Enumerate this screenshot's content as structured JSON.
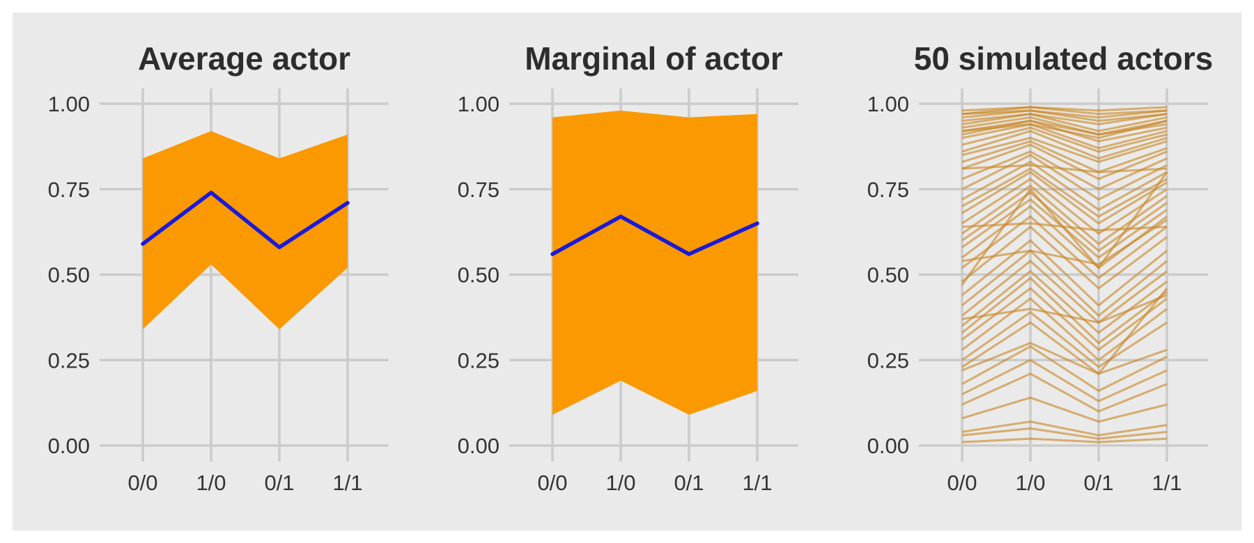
{
  "figure": {
    "page_background": "#ffffff",
    "panel_background": "#eaeaea",
    "grid_color": "#cbcbcb",
    "title_color": "#2d2d2d",
    "label_color": "#333333",
    "ribbon_color": "#fb9902",
    "mean_line_color": "#1a1ad9",
    "actor_line_color": "#c8841e",
    "actor_line_opacity": 0.6
  },
  "axes": {
    "x_ticklabels": [
      "0/0",
      "1/0",
      "0/1",
      "1/1"
    ],
    "y_ticklabels": [
      "0.00",
      "0.25",
      "0.50",
      "0.75",
      "1.00"
    ],
    "y_tickvalues": [
      0,
      0.25,
      0.5,
      0.75,
      1
    ],
    "ylim": [
      0,
      1
    ],
    "grid": "on",
    "legend": "none"
  },
  "chart_data": [
    {
      "type": "area",
      "title": "Average actor",
      "categories": [
        "0/0",
        "1/0",
        "0/1",
        "1/1"
      ],
      "mean": [
        0.59,
        0.74,
        0.58,
        0.71
      ],
      "ribbon_lower": [
        0.34,
        0.53,
        0.34,
        0.52
      ],
      "ribbon_upper": [
        0.84,
        0.92,
        0.84,
        0.91
      ],
      "ylim": [
        0,
        1
      ]
    },
    {
      "type": "area",
      "title": "Marginal of actor",
      "categories": [
        "0/0",
        "1/0",
        "0/1",
        "1/1"
      ],
      "mean": [
        0.56,
        0.67,
        0.56,
        0.65
      ],
      "ribbon_lower": [
        0.09,
        0.19,
        0.09,
        0.16
      ],
      "ribbon_upper": [
        0.96,
        0.98,
        0.96,
        0.97
      ],
      "ylim": [
        0,
        1
      ]
    },
    {
      "type": "line",
      "title": "50 simulated actors",
      "categories": [
        "0/0",
        "1/0",
        "0/1",
        "1/1"
      ],
      "series": [
        [
          0.98,
          0.99,
          0.98,
          0.99
        ],
        [
          0.97,
          0.99,
          0.97,
          0.98
        ],
        [
          0.97,
          0.98,
          0.96,
          0.98
        ],
        [
          0.96,
          0.98,
          0.95,
          0.97
        ],
        [
          0.95,
          0.97,
          0.94,
          0.97
        ],
        [
          0.94,
          0.97,
          0.92,
          0.96
        ],
        [
          0.93,
          0.96,
          0.91,
          0.95
        ],
        [
          0.92,
          0.95,
          0.91,
          0.94
        ],
        [
          0.92,
          0.94,
          0.9,
          0.95
        ],
        [
          0.91,
          0.95,
          0.89,
          0.93
        ],
        [
          0.9,
          0.94,
          0.87,
          0.92
        ],
        [
          0.88,
          0.93,
          0.86,
          0.91
        ],
        [
          0.86,
          0.92,
          0.84,
          0.9
        ],
        [
          0.85,
          0.9,
          0.83,
          0.89
        ],
        [
          0.83,
          0.89,
          0.8,
          0.87
        ],
        [
          0.81,
          0.88,
          0.78,
          0.86
        ],
        [
          0.81,
          0.82,
          0.8,
          0.81
        ],
        [
          0.78,
          0.86,
          0.75,
          0.84
        ],
        [
          0.75,
          0.85,
          0.72,
          0.82
        ],
        [
          0.72,
          0.83,
          0.69,
          0.8
        ],
        [
          0.7,
          0.81,
          0.67,
          0.78
        ],
        [
          0.68,
          0.8,
          0.65,
          0.77
        ],
        [
          0.65,
          0.78,
          0.62,
          0.75
        ],
        [
          0.64,
          0.65,
          0.63,
          0.64
        ],
        [
          0.62,
          0.76,
          0.59,
          0.73
        ],
        [
          0.6,
          0.74,
          0.57,
          0.71
        ],
        [
          0.58,
          0.72,
          0.55,
          0.69
        ],
        [
          0.55,
          0.7,
          0.52,
          0.67
        ],
        [
          0.54,
          0.57,
          0.53,
          0.66
        ],
        [
          0.52,
          0.67,
          0.49,
          0.64
        ],
        [
          0.48,
          0.64,
          0.46,
          0.61
        ],
        [
          0.47,
          0.75,
          0.52,
          0.8
        ],
        [
          0.44,
          0.6,
          0.41,
          0.57
        ],
        [
          0.41,
          0.57,
          0.38,
          0.54
        ],
        [
          0.38,
          0.54,
          0.36,
          0.51
        ],
        [
          0.37,
          0.4,
          0.36,
          0.44
        ],
        [
          0.35,
          0.51,
          0.33,
          0.48
        ],
        [
          0.33,
          0.49,
          0.3,
          0.45
        ],
        [
          0.31,
          0.46,
          0.28,
          0.43
        ],
        [
          0.28,
          0.43,
          0.25,
          0.4
        ],
        [
          0.25,
          0.39,
          0.23,
          0.36
        ],
        [
          0.23,
          0.36,
          0.21,
          0.46
        ],
        [
          0.22,
          0.3,
          0.21,
          0.28
        ],
        [
          0.18,
          0.29,
          0.16,
          0.26
        ],
        [
          0.15,
          0.25,
          0.13,
          0.22
        ],
        [
          0.12,
          0.21,
          0.1,
          0.18
        ],
        [
          0.08,
          0.14,
          0.07,
          0.12
        ],
        [
          0.04,
          0.07,
          0.03,
          0.06
        ],
        [
          0.03,
          0.05,
          0.02,
          0.04
        ],
        [
          0.01,
          0.02,
          0.01,
          0.02
        ]
      ],
      "ylim": [
        0,
        1
      ]
    }
  ]
}
